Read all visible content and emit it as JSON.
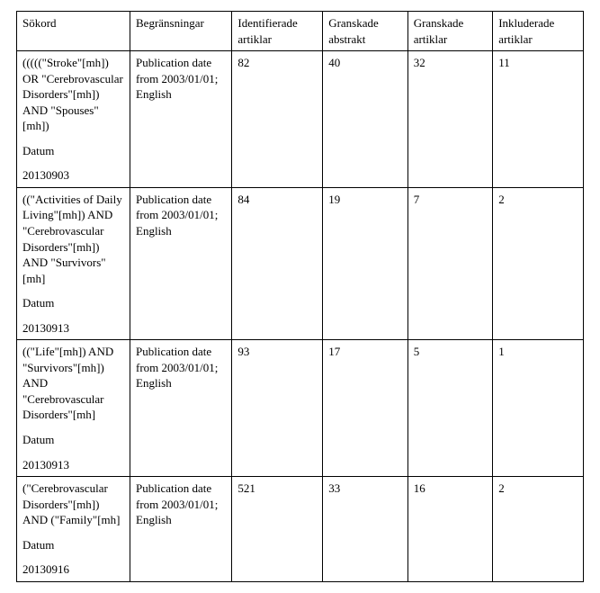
{
  "table": {
    "columns": [
      "Sökord",
      "Begränsningar",
      "Identifierade artiklar",
      "Granskade abstrakt",
      "Granskade artiklar",
      "Inkluderade artiklar"
    ],
    "rows": [
      {
        "sokord_query": "(((((\"Stroke\"[mh]) OR \"Cerebrovascular Disorders\"[mh]) AND \"Spouses\"[mh])",
        "sokord_datum_label": "Datum",
        "sokord_datum_value": "20130903",
        "begransningar": "Publication date from 2003/01/01; English",
        "identifierade": "82",
        "granskade_abstrakt": "40",
        "granskade_artiklar": "32",
        "inkluderade": "11"
      },
      {
        "sokord_query": "((\"Activities of Daily Living\"[mh]) AND \"Cerebrovascular Disorders\"[mh]) AND \"Survivors\"[mh]",
        "sokord_datum_label": "Datum",
        "sokord_datum_value": "20130913",
        "begransningar": "Publication date from 2003/01/01; English",
        "identifierade": "84",
        "granskade_abstrakt": "19",
        "granskade_artiklar": "7",
        "inkluderade": "2"
      },
      {
        "sokord_query": "((\"Life\"[mh]) AND \"Survivors\"[mh]) AND \"Cerebrovascular Disorders\"[mh]",
        "sokord_datum_label": "Datum",
        "sokord_datum_value": "20130913",
        "begransningar": "Publication date from 2003/01/01; English",
        "identifierade": "93",
        "granskade_abstrakt": "17",
        "granskade_artiklar": "5",
        "inkluderade": "1"
      },
      {
        "sokord_query": "(\"Cerebrovascular Disorders\"[mh]) AND (\"Family\"[mh]",
        "sokord_datum_label": "Datum",
        "sokord_datum_value": "20130916",
        "begransningar": "Publication date from 2003/01/01; English",
        "identifierade": "521",
        "granskade_abstrakt": "33",
        "granskade_artiklar": "16",
        "inkluderade": "2"
      }
    ]
  }
}
